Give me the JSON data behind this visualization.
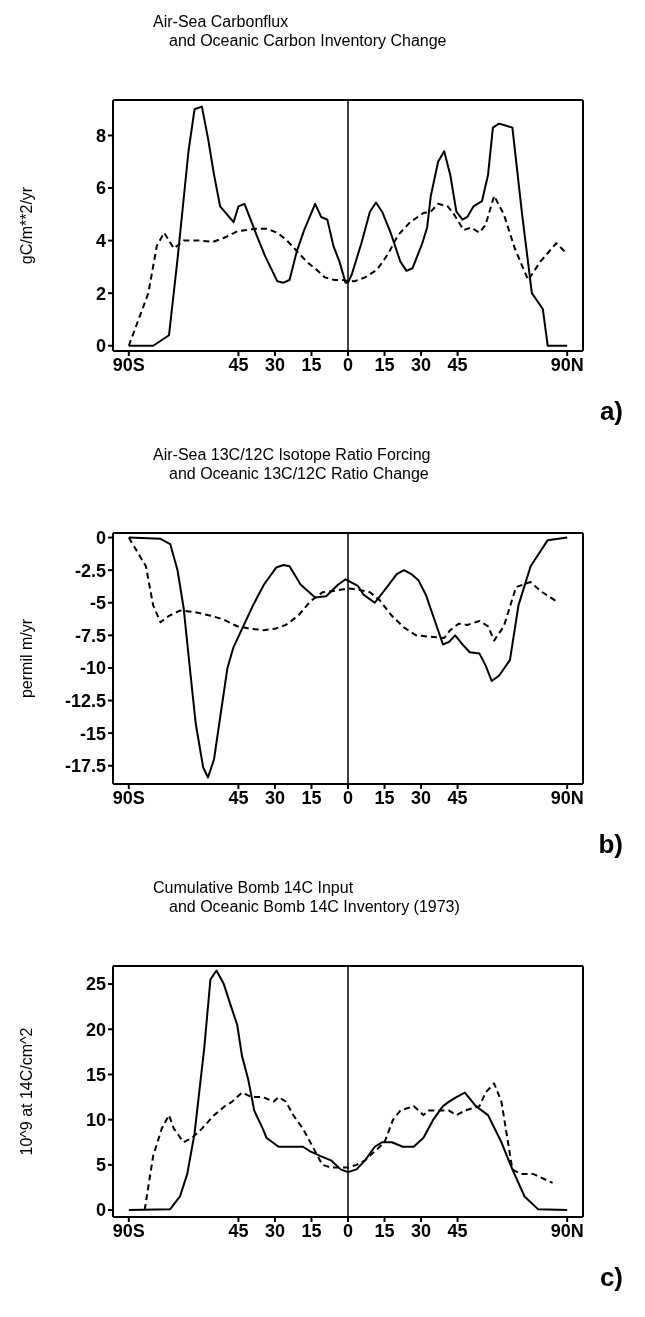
{
  "chart_data": [
    {
      "type": "line",
      "title": "Air-Sea Carbonflux\nand Oceanic Carbon Inventory Change",
      "ylabel": "gC/m**2/yr",
      "annotations": [
        "a)"
      ],
      "xlim": [
        -96.5,
        96.5
      ],
      "xticks": [
        {
          "value": -90,
          "label": "90S"
        },
        {
          "value": -45,
          "label": "45"
        },
        {
          "value": -30,
          "label": "30"
        },
        {
          "value": -15,
          "label": "15"
        },
        0,
        15,
        30,
        45,
        {
          "value": 90,
          "label": "90N"
        }
      ],
      "ylim": [
        -0.2,
        9.35
      ],
      "yticks": [
        0,
        2,
        4,
        6,
        8
      ],
      "ref_lines": [
        {
          "axis": "x",
          "value": 0,
          "color": "#000000"
        }
      ],
      "series": [
        {
          "color": "#000000",
          "line_style": "solid",
          "x": [
            -90,
            -80,
            -73.5,
            -70,
            -65.5,
            -63,
            -60,
            -57.5,
            -55,
            -52.5,
            -47,
            -45,
            -42.5,
            -37.5,
            -34,
            -29,
            -26.5,
            -24,
            -21,
            -18,
            -13.5,
            -11,
            -8.5,
            -6,
            -3.5,
            -1,
            0,
            1.5,
            5.5,
            9,
            11.5,
            14,
            17.5,
            21.5,
            24,
            26.5,
            30.5,
            32.5,
            34,
            37,
            39.5,
            42,
            44.5,
            47,
            49,
            51.5,
            55,
            57.5,
            59.5,
            62,
            67.5,
            71.5,
            75.5,
            80,
            82,
            90
          ],
          "values": [
            0,
            0,
            0.4,
            3.3,
            7.4,
            9.0,
            9.1,
            7.9,
            6.5,
            5.3,
            4.7,
            5.3,
            5.4,
            4.2,
            3.4,
            2.45,
            2.4,
            2.5,
            3.6,
            4.4,
            5.4,
            4.9,
            4.8,
            3.8,
            3.2,
            2.4,
            2.4,
            2.7,
            3.9,
            5.1,
            5.45,
            5.1,
            4.3,
            3.2,
            2.85,
            2.95,
            3.9,
            4.5,
            5.7,
            7.0,
            7.4,
            6.5,
            5.1,
            4.8,
            4.9,
            5.3,
            5.5,
            6.5,
            8.3,
            8.45,
            8.3,
            5.0,
            2.0,
            1.4,
            0,
            0
          ]
        },
        {
          "color": "#000000",
          "line_style": "dashed",
          "x": [
            -90,
            -82,
            -78.5,
            -75.5,
            -71.5,
            -67.5,
            -61,
            -55.5,
            -51,
            -45.5,
            -38,
            -33.5,
            -29,
            -25,
            -21,
            -17,
            -13,
            -9.5,
            -5.5,
            -2,
            0,
            2.5,
            7,
            12,
            16.5,
            20.5,
            25.5,
            31,
            34,
            37,
            41,
            43.5,
            45.5,
            47.5,
            50.5,
            54,
            56.5,
            60,
            64,
            68.5,
            74,
            79,
            85.5,
            90
          ],
          "values": [
            0,
            2.0,
            3.8,
            4.3,
            3.7,
            4.0,
            4.0,
            3.95,
            4.1,
            4.35,
            4.45,
            4.45,
            4.3,
            4.0,
            3.6,
            3.2,
            2.9,
            2.6,
            2.5,
            2.5,
            2.45,
            2.45,
            2.6,
            2.9,
            3.5,
            4.2,
            4.7,
            5.05,
            5.1,
            5.4,
            5.3,
            5.0,
            4.7,
            4.4,
            4.5,
            4.3,
            4.6,
            5.7,
            5.0,
            3.7,
            2.5,
            3.2,
            3.9,
            3.5
          ]
        }
      ]
    },
    {
      "type": "line",
      "title": "Air-Sea 13C/12C Isotope Ratio Forcing\nand Oceanic 13C/12C Ratio Change",
      "ylabel": "permil m/yr",
      "annotations": [
        "b)"
      ],
      "xlim": [
        -96.5,
        96.5
      ],
      "xticks": [
        {
          "value": -90,
          "label": "90S"
        },
        {
          "value": -45,
          "label": "45"
        },
        {
          "value": -30,
          "label": "30"
        },
        {
          "value": -15,
          "label": "15"
        },
        0,
        15,
        30,
        45,
        {
          "value": 90,
          "label": "90N"
        }
      ],
      "ylim": [
        -18.9,
        0.35
      ],
      "yticks": [
        0,
        -2.5,
        -5,
        -7.5,
        -10,
        -12.5,
        -15,
        -17.5
      ],
      "ref_lines": [
        {
          "axis": "x",
          "value": 0,
          "color": "#000000"
        }
      ],
      "series": [
        {
          "color": "#000000",
          "line_style": "solid",
          "x": [
            -90,
            -77,
            -73,
            -70,
            -67.5,
            -64.5,
            -62.5,
            -59.5,
            -57.5,
            -55,
            -52.5,
            -49.5,
            -47,
            -43,
            -39,
            -34.5,
            -29.5,
            -26.5,
            -24,
            -19.5,
            -13.5,
            -9,
            -4,
            -1,
            0,
            4,
            6.5,
            11,
            16,
            20,
            23,
            26,
            29,
            32,
            35.5,
            39,
            41.5,
            44,
            47.5,
            50,
            54,
            56.5,
            59,
            62,
            66.5,
            70,
            75,
            82,
            90
          ],
          "values": [
            0,
            -0.1,
            -0.5,
            -2.5,
            -5.4,
            -10.8,
            -14.3,
            -17.6,
            -18.4,
            -17.0,
            -13.8,
            -10.0,
            -8.4,
            -6.8,
            -5.2,
            -3.6,
            -2.3,
            -2.1,
            -2.2,
            -3.6,
            -4.6,
            -4.5,
            -3.6,
            -3.2,
            -3.3,
            -3.7,
            -4.4,
            -5.0,
            -3.8,
            -2.8,
            -2.5,
            -2.8,
            -3.3,
            -4.4,
            -6.3,
            -8.2,
            -8.0,
            -7.5,
            -8.3,
            -8.8,
            -8.9,
            -9.8,
            -11.0,
            -10.6,
            -9.4,
            -5.2,
            -2.2,
            -0.2,
            0
          ]
        },
        {
          "color": "#000000",
          "line_style": "dashed",
          "x": [
            -90,
            -83,
            -80,
            -77,
            -73.5,
            -69,
            -63.5,
            -56,
            -51,
            -45.5,
            -40,
            -34.5,
            -30,
            -25.5,
            -20.5,
            -15.5,
            -10.5,
            -6,
            0,
            4.5,
            9,
            13,
            18,
            23,
            28,
            33.5,
            39.5,
            42,
            45.5,
            49,
            54,
            57.5,
            60,
            64,
            69,
            75,
            79,
            86.5
          ],
          "values": [
            0,
            -2.2,
            -5.2,
            -6.5,
            -6.0,
            -5.6,
            -5.7,
            -6.0,
            -6.3,
            -6.8,
            -7.0,
            -7.1,
            -7.0,
            -6.7,
            -6.0,
            -4.9,
            -4.2,
            -4.1,
            -3.9,
            -4.0,
            -4.2,
            -4.8,
            -6.0,
            -6.9,
            -7.5,
            -7.6,
            -7.7,
            -7.1,
            -6.6,
            -6.7,
            -6.4,
            -6.8,
            -7.9,
            -6.8,
            -3.8,
            -3.4,
            -4.1,
            -5.0
          ]
        }
      ]
    },
    {
      "type": "line",
      "title": "Cumulative Bomb 14C Input\nand Oceanic Bomb 14C Inventory (1973)",
      "ylabel": "10^9 at 14C/cm^2",
      "annotations": [
        "c)"
      ],
      "xlim": [
        -96.5,
        96.5
      ],
      "xticks": [
        {
          "value": -90,
          "label": "90S"
        },
        {
          "value": -45,
          "label": "45"
        },
        {
          "value": -30,
          "label": "30"
        },
        {
          "value": -15,
          "label": "15"
        },
        0,
        15,
        30,
        45,
        {
          "value": 90,
          "label": "90N"
        }
      ],
      "ylim": [
        -0.77,
        27
      ],
      "yticks": [
        0,
        5,
        10,
        15,
        20,
        25
      ],
      "ref_lines": [
        {
          "axis": "x",
          "value": 0,
          "color": "#000000"
        }
      ],
      "series": [
        {
          "color": "#000000",
          "line_style": "solid",
          "x": [
            -90,
            -73,
            -69,
            -66,
            -63,
            -59,
            -56.5,
            -54,
            -51,
            -48,
            -45.5,
            -43.5,
            -41,
            -38.5,
            -35,
            -33.5,
            -28.5,
            -24.5,
            -18.5,
            -15.5,
            -11.5,
            -7,
            -3,
            0,
            3.5,
            7,
            11,
            14,
            18,
            22.5,
            27,
            31,
            35,
            39,
            41.5,
            44.5,
            48,
            52.5,
            57.5,
            63,
            67.5,
            72.5,
            78,
            90
          ],
          "values": [
            0,
            0.1,
            1.5,
            4,
            8.5,
            18,
            25.5,
            26.5,
            25,
            22.5,
            20.5,
            17,
            14.5,
            11,
            9,
            8,
            7,
            7,
            7,
            6.5,
            6,
            5.5,
            4.5,
            4.2,
            4.5,
            5.5,
            7,
            7.5,
            7.5,
            7,
            7,
            8,
            10,
            11.5,
            12,
            12.5,
            13,
            11.5,
            10.5,
            7.5,
            4.5,
            1.5,
            0.1,
            0
          ]
        },
        {
          "color": "#000000",
          "line_style": "dashed",
          "x": [
            -83.5,
            -80,
            -76.5,
            -73.5,
            -71.5,
            -67.5,
            -64,
            -60,
            -55,
            -50.5,
            -47.5,
            -43.5,
            -39.5,
            -35,
            -30.5,
            -28.5,
            -25.5,
            -22.5,
            -18.5,
            -14.5,
            -10.5,
            -7,
            -3,
            0,
            3.5,
            7,
            11,
            15,
            18.5,
            21.5,
            27,
            29,
            31,
            33,
            38,
            41.5,
            44.5,
            48,
            54,
            56.5,
            60,
            63,
            67.5,
            71,
            76,
            84
          ],
          "values": [
            0,
            6,
            9,
            10.5,
            9,
            7.5,
            8,
            9,
            10.5,
            11.5,
            12,
            13,
            12.5,
            12.5,
            12,
            12.5,
            12,
            10.5,
            9,
            7,
            5,
            4.7,
            4.7,
            4.7,
            5,
            5.5,
            6.5,
            7.5,
            10,
            11,
            11.5,
            11,
            10.5,
            11,
            11,
            11,
            10.5,
            11,
            11.5,
            13,
            14,
            12,
            4.5,
            4,
            4,
            3
          ]
        }
      ]
    }
  ]
}
